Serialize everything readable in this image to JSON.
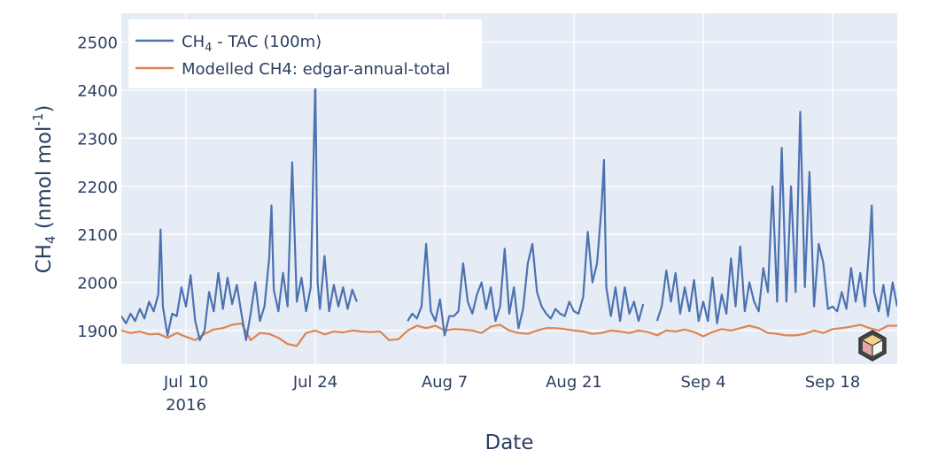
{
  "colors": {
    "plot_background": "#e5ecf6",
    "grid": "#ffffff",
    "observed": "#4c72b0",
    "modelled": "#dd8452",
    "text": "#2a3f5f"
  },
  "chart_data": {
    "type": "line",
    "xlabel": "Date",
    "ylabel": {
      "main": "CH",
      "sub": "4",
      "unit": " (nmol mol",
      "sup": "-1",
      "close": ")"
    },
    "grid": true,
    "legend_position": "top-left",
    "x_range": [
      "2016-07-03",
      "2016-09-25"
    ],
    "ylim": [
      1830,
      2560
    ],
    "x_ticks": [
      {
        "date": "2016-07-10",
        "label": "Jul 10",
        "sublabel": "2016"
      },
      {
        "date": "2016-07-24",
        "label": "Jul 24",
        "sublabel": ""
      },
      {
        "date": "2016-08-07",
        "label": "Aug 7",
        "sublabel": ""
      },
      {
        "date": "2016-08-21",
        "label": "Aug 21",
        "sublabel": ""
      },
      {
        "date": "2016-09-04",
        "label": "Sep 4",
        "sublabel": ""
      },
      {
        "date": "2016-09-18",
        "label": "Sep 18",
        "sublabel": ""
      }
    ],
    "y_ticks": [
      1900,
      2000,
      2100,
      2200,
      2300,
      2400,
      2500
    ],
    "series": [
      {
        "name": {
          "main": "CH",
          "sub": "4",
          "rest": " - TAC (100m)"
        },
        "color_key": "observed",
        "points": [
          [
            "2016-07-03T00",
            1930
          ],
          [
            "2016-07-03T12",
            1915
          ],
          [
            "2016-07-04T00",
            1935
          ],
          [
            "2016-07-04T12",
            1920
          ],
          [
            "2016-07-05T00",
            1945
          ],
          [
            "2016-07-05T12",
            1925
          ],
          [
            "2016-07-06T00",
            1960
          ],
          [
            "2016-07-06T12",
            1940
          ],
          [
            "2016-07-07T00",
            1975
          ],
          [
            "2016-07-07T06",
            2110
          ],
          [
            "2016-07-07T12",
            1950
          ],
          [
            "2016-07-08T00",
            1890
          ],
          [
            "2016-07-08T12",
            1935
          ],
          [
            "2016-07-09T00",
            1930
          ],
          [
            "2016-07-09T12",
            1990
          ],
          [
            "2016-07-10T00",
            1950
          ],
          [
            "2016-07-10T12",
            2015
          ],
          [
            "2016-07-11T00",
            1920
          ],
          [
            "2016-07-11T12",
            1880
          ],
          [
            "2016-07-12T00",
            1900
          ],
          [
            "2016-07-12T12",
            1980
          ],
          [
            "2016-07-13T00",
            1940
          ],
          [
            "2016-07-13T12",
            2020
          ],
          [
            "2016-07-14T00",
            1945
          ],
          [
            "2016-07-14T12",
            2010
          ],
          [
            "2016-07-15T00",
            1955
          ],
          [
            "2016-07-15T12",
            1995
          ],
          [
            "2016-07-16T00",
            1935
          ],
          [
            "2016-07-16T12",
            1880
          ],
          [
            "2016-07-17T00",
            1935
          ],
          [
            "2016-07-17T12",
            2000
          ],
          [
            "2016-07-18T00",
            1920
          ],
          [
            "2016-07-18T12",
            1950
          ],
          [
            "2016-07-19T00",
            2050
          ],
          [
            "2016-07-19T06",
            2160
          ],
          [
            "2016-07-19T12",
            1985
          ],
          [
            "2016-07-20T00",
            1940
          ],
          [
            "2016-07-20T12",
            2020
          ],
          [
            "2016-07-21T00",
            1950
          ],
          [
            "2016-07-21T12",
            2250
          ],
          [
            "2016-07-22T00",
            1960
          ],
          [
            "2016-07-22T12",
            2010
          ],
          [
            "2016-07-23T00",
            1940
          ],
          [
            "2016-07-23T12",
            1990
          ],
          [
            "2016-07-24T00",
            2420
          ],
          [
            "2016-07-24T06",
            2000
          ],
          [
            "2016-07-24T12",
            1945
          ],
          [
            "2016-07-25T00",
            2055
          ],
          [
            "2016-07-25T12",
            1940
          ],
          [
            "2016-07-26T00",
            1995
          ],
          [
            "2016-07-26T12",
            1950
          ],
          [
            "2016-07-27T00",
            1990
          ],
          [
            "2016-07-27T12",
            1945
          ],
          [
            "2016-07-28T00",
            1985
          ],
          [
            "2016-07-28T12",
            1960
          ],
          [
            null,
            null
          ],
          [
            "2016-08-03T00",
            1920
          ],
          [
            "2016-08-03T12",
            1935
          ],
          [
            "2016-08-04T00",
            1925
          ],
          [
            "2016-08-04T12",
            1950
          ],
          [
            "2016-08-05T00",
            2080
          ],
          [
            "2016-08-05T12",
            1940
          ],
          [
            "2016-08-06T00",
            1920
          ],
          [
            "2016-08-06T12",
            1965
          ],
          [
            "2016-08-07T00",
            1890
          ],
          [
            "2016-08-07T12",
            1930
          ],
          [
            "2016-08-08T00",
            1930
          ],
          [
            "2016-08-08T12",
            1940
          ],
          [
            "2016-08-09T00",
            2040
          ],
          [
            "2016-08-09T12",
            1960
          ],
          [
            "2016-08-10T00",
            1935
          ],
          [
            "2016-08-10T12",
            1975
          ],
          [
            "2016-08-11T00",
            2000
          ],
          [
            "2016-08-11T12",
            1945
          ],
          [
            "2016-08-12T00",
            1990
          ],
          [
            "2016-08-12T12",
            1920
          ],
          [
            "2016-08-13T00",
            1950
          ],
          [
            "2016-08-13T12",
            2070
          ],
          [
            "2016-08-14T00",
            1935
          ],
          [
            "2016-08-14T12",
            1990
          ],
          [
            "2016-08-15T00",
            1905
          ],
          [
            "2016-08-15T12",
            1945
          ],
          [
            "2016-08-16T00",
            2040
          ],
          [
            "2016-08-16T12",
            2080
          ],
          [
            "2016-08-17T00",
            1980
          ],
          [
            "2016-08-17T12",
            1950
          ],
          [
            "2016-08-18T00",
            1935
          ],
          [
            "2016-08-18T12",
            1925
          ],
          [
            "2016-08-19T00",
            1945
          ],
          [
            "2016-08-19T12",
            1935
          ],
          [
            "2016-08-20T00",
            1930
          ],
          [
            "2016-08-20T12",
            1960
          ],
          [
            "2016-08-21T00",
            1940
          ],
          [
            "2016-08-21T12",
            1935
          ],
          [
            "2016-08-22T00",
            1970
          ],
          [
            "2016-08-22T12",
            2105
          ],
          [
            "2016-08-23T00",
            2000
          ],
          [
            "2016-08-23T12",
            2040
          ],
          [
            "2016-08-24T00",
            2160
          ],
          [
            "2016-08-24T06",
            2255
          ],
          [
            "2016-08-24T12",
            1990
          ],
          [
            "2016-08-25T00",
            1930
          ],
          [
            "2016-08-25T12",
            1990
          ],
          [
            "2016-08-26T00",
            1920
          ],
          [
            "2016-08-26T12",
            1990
          ],
          [
            "2016-08-27T00",
            1935
          ],
          [
            "2016-08-27T12",
            1960
          ],
          [
            "2016-08-28T00",
            1920
          ],
          [
            "2016-08-28T12",
            1955
          ],
          [
            null,
            null
          ],
          [
            "2016-08-30T00",
            1920
          ],
          [
            "2016-08-30T12",
            1950
          ],
          [
            "2016-08-31T00",
            2025
          ],
          [
            "2016-08-31T12",
            1960
          ],
          [
            "2016-09-01T00",
            2020
          ],
          [
            "2016-09-01T12",
            1935
          ],
          [
            "2016-09-02T00",
            1990
          ],
          [
            "2016-09-02T12",
            1940
          ],
          [
            "2016-09-03T00",
            2005
          ],
          [
            "2016-09-03T12",
            1920
          ],
          [
            "2016-09-04T00",
            1960
          ],
          [
            "2016-09-04T12",
            1920
          ],
          [
            "2016-09-05T00",
            2010
          ],
          [
            "2016-09-05T12",
            1915
          ],
          [
            "2016-09-06T00",
            1975
          ],
          [
            "2016-09-06T12",
            1935
          ],
          [
            "2016-09-07T00",
            2050
          ],
          [
            "2016-09-07T12",
            1950
          ],
          [
            "2016-09-08T00",
            2075
          ],
          [
            "2016-09-08T12",
            1940
          ],
          [
            "2016-09-09T00",
            2000
          ],
          [
            "2016-09-09T12",
            1960
          ],
          [
            "2016-09-10T00",
            1940
          ],
          [
            "2016-09-10T12",
            2030
          ],
          [
            "2016-09-11T00",
            1980
          ],
          [
            "2016-09-11T12",
            2200
          ],
          [
            "2016-09-12T00",
            1960
          ],
          [
            "2016-09-12T12",
            2280
          ],
          [
            "2016-09-13T00",
            1960
          ],
          [
            "2016-09-13T12",
            2200
          ],
          [
            "2016-09-14T00",
            1980
          ],
          [
            "2016-09-14T12",
            2355
          ],
          [
            "2016-09-15T00",
            1990
          ],
          [
            "2016-09-15T12",
            2230
          ],
          [
            "2016-09-16T00",
            1950
          ],
          [
            "2016-09-16T12",
            2080
          ],
          [
            "2016-09-17T00",
            2040
          ],
          [
            "2016-09-17T12",
            1945
          ],
          [
            "2016-09-18T00",
            1950
          ],
          [
            "2016-09-18T12",
            1940
          ],
          [
            "2016-09-19T00",
            1980
          ],
          [
            "2016-09-19T12",
            1945
          ],
          [
            "2016-09-20T00",
            2030
          ],
          [
            "2016-09-20T12",
            1960
          ],
          [
            "2016-09-21T00",
            2020
          ],
          [
            "2016-09-21T12",
            1950
          ],
          [
            "2016-09-22T00",
            2080
          ],
          [
            "2016-09-22T06",
            2160
          ],
          [
            "2016-09-22T12",
            1980
          ],
          [
            "2016-09-23T00",
            1940
          ],
          [
            "2016-09-23T12",
            1995
          ],
          [
            "2016-09-24T00",
            1930
          ],
          [
            "2016-09-24T12",
            2000
          ],
          [
            "2016-09-25T00",
            1950
          ]
        ]
      },
      {
        "name": {
          "main": "Modelled CH4: edgar-annual-total",
          "sub": "",
          "rest": ""
        },
        "color_key": "modelled",
        "points": [
          [
            "2016-07-03T00",
            1900
          ],
          [
            "2016-07-04T00",
            1895
          ],
          [
            "2016-07-05T00",
            1898
          ],
          [
            "2016-07-06T00",
            1892
          ],
          [
            "2016-07-07T00",
            1893
          ],
          [
            "2016-07-08T00",
            1885
          ],
          [
            "2016-07-09T00",
            1895
          ],
          [
            "2016-07-10T00",
            1887
          ],
          [
            "2016-07-11T00",
            1880
          ],
          [
            "2016-07-12T00",
            1893
          ],
          [
            "2016-07-13T00",
            1902
          ],
          [
            "2016-07-14T00",
            1905
          ],
          [
            "2016-07-15T00",
            1912
          ],
          [
            "2016-07-16T00",
            1915
          ],
          [
            "2016-07-17T00",
            1880
          ],
          [
            "2016-07-18T00",
            1895
          ],
          [
            "2016-07-19T00",
            1893
          ],
          [
            "2016-07-20T00",
            1885
          ],
          [
            "2016-07-21T00",
            1872
          ],
          [
            "2016-07-22T00",
            1868
          ],
          [
            "2016-07-23T00",
            1895
          ],
          [
            "2016-07-24T00",
            1900
          ],
          [
            "2016-07-25T00",
            1892
          ],
          [
            "2016-07-26T00",
            1898
          ],
          [
            "2016-07-27T00",
            1896
          ],
          [
            "2016-07-28T00",
            1900
          ],
          [
            "2016-07-29T00",
            1898
          ],
          [
            "2016-07-30T00",
            1897
          ],
          [
            "2016-07-31T00",
            1898
          ],
          [
            "2016-08-01T00",
            1880
          ],
          [
            "2016-08-02T00",
            1882
          ],
          [
            "2016-08-03T00",
            1900
          ],
          [
            "2016-08-04T00",
            1910
          ],
          [
            "2016-08-05T00",
            1905
          ],
          [
            "2016-08-06T00",
            1910
          ],
          [
            "2016-08-07T00",
            1900
          ],
          [
            "2016-08-08T00",
            1903
          ],
          [
            "2016-08-09T00",
            1902
          ],
          [
            "2016-08-10T00",
            1900
          ],
          [
            "2016-08-11T00",
            1895
          ],
          [
            "2016-08-12T00",
            1908
          ],
          [
            "2016-08-13T00",
            1912
          ],
          [
            "2016-08-14T00",
            1900
          ],
          [
            "2016-08-15T00",
            1895
          ],
          [
            "2016-08-16T00",
            1893
          ],
          [
            "2016-08-17T00",
            1900
          ],
          [
            "2016-08-18T00",
            1905
          ],
          [
            "2016-08-19T00",
            1905
          ],
          [
            "2016-08-20T00",
            1903
          ],
          [
            "2016-08-21T00",
            1900
          ],
          [
            "2016-08-22T00",
            1898
          ],
          [
            "2016-08-23T00",
            1893
          ],
          [
            "2016-08-24T00",
            1895
          ],
          [
            "2016-08-25T00",
            1900
          ],
          [
            "2016-08-26T00",
            1898
          ],
          [
            "2016-08-27T00",
            1895
          ],
          [
            "2016-08-28T00",
            1900
          ],
          [
            "2016-08-29T00",
            1897
          ],
          [
            "2016-08-30T00",
            1890
          ],
          [
            "2016-08-31T00",
            1900
          ],
          [
            "2016-09-01T00",
            1898
          ],
          [
            "2016-09-02T00",
            1902
          ],
          [
            "2016-09-03T00",
            1897
          ],
          [
            "2016-09-04T00",
            1888
          ],
          [
            "2016-09-05T00",
            1897
          ],
          [
            "2016-09-06T00",
            1903
          ],
          [
            "2016-09-07T00",
            1900
          ],
          [
            "2016-09-08T00",
            1905
          ],
          [
            "2016-09-09T00",
            1910
          ],
          [
            "2016-09-10T00",
            1905
          ],
          [
            "2016-09-11T00",
            1895
          ],
          [
            "2016-09-12T00",
            1893
          ],
          [
            "2016-09-13T00",
            1890
          ],
          [
            "2016-09-14T00",
            1890
          ],
          [
            "2016-09-15T00",
            1893
          ],
          [
            "2016-09-16T00",
            1900
          ],
          [
            "2016-09-17T00",
            1895
          ],
          [
            "2016-09-18T00",
            1903
          ],
          [
            "2016-09-19T00",
            1905
          ],
          [
            "2016-09-20T00",
            1908
          ],
          [
            "2016-09-21T00",
            1912
          ],
          [
            "2016-09-22T00",
            1905
          ],
          [
            "2016-09-23T00",
            1900
          ],
          [
            "2016-09-24T00",
            1910
          ],
          [
            "2016-09-25T00",
            1910
          ]
        ]
      }
    ]
  },
  "logo": {
    "icon": "cube-logo-icon"
  }
}
